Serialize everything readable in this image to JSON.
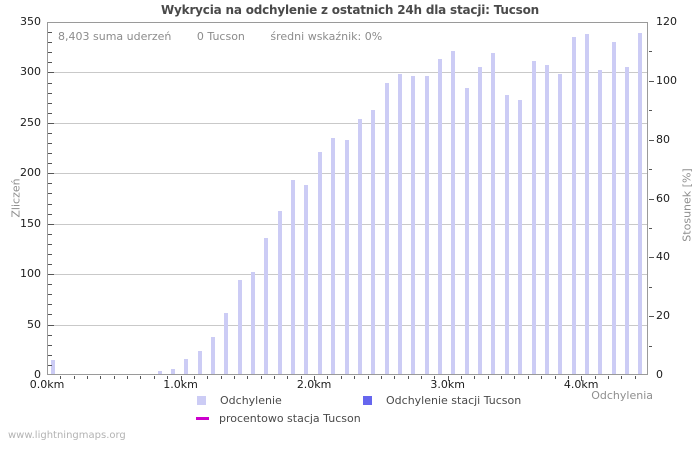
{
  "title": "Wykrycia na odchylenie z ostatnich 24h dla stacji: Tucson",
  "summary": {
    "total_label": "8,403 suma uderzeń",
    "station_label": "0 Tucson",
    "ratio_label": "średni wskaźnik: 0%"
  },
  "footer": "www.lightningmaps.org",
  "colors": {
    "bar": "#ccccf5",
    "station_bar": "#6666ee",
    "percent_line": "#cc00cc",
    "grid": "#c9c9c9",
    "frame": "#9a9a9a",
    "tick": "#555555"
  },
  "legend": {
    "deviation": "Odchylenie",
    "station_deviation": "Odchylenie stacji Tucson",
    "percent_station": "procentowo stacja Tucson"
  },
  "chart_data": {
    "type": "bar",
    "title": "Wykrycia na odchylenie z ostatnich 24h dla stacji: Tucson",
    "xlabel": "Odchylenia",
    "ylabel_left": "Zliczeń",
    "ylabel_right": "Stosunek [%]",
    "x_unit": "km",
    "x_bin_width_km": 0.1,
    "x_range_km": [
      0,
      4.5
    ],
    "ylim_left": [
      0,
      350
    ],
    "ylim_right": [
      0,
      120
    ],
    "x_tick_labels": [
      "0.0km",
      "1.0km",
      "2.0km",
      "3.0km",
      "4.0km"
    ],
    "y_ticks_left": [
      0,
      50,
      100,
      150,
      200,
      250,
      300,
      350
    ],
    "y_ticks_right": [
      0,
      20,
      40,
      60,
      80,
      100,
      120
    ],
    "grid": true,
    "legend_position": "bottom",
    "series": [
      {
        "name": "Odchylenie",
        "x_km": [
          0.0,
          0.1,
          0.2,
          0.3,
          0.4,
          0.5,
          0.6,
          0.7,
          0.8,
          0.9,
          1.0,
          1.1,
          1.2,
          1.3,
          1.4,
          1.5,
          1.6,
          1.7,
          1.8,
          1.9,
          2.0,
          2.1,
          2.2,
          2.3,
          2.4,
          2.5,
          2.6,
          2.7,
          2.8,
          2.9,
          3.0,
          3.1,
          3.2,
          3.3,
          3.4,
          3.5,
          3.6,
          3.7,
          3.8,
          3.9,
          4.0,
          4.1,
          4.2,
          4.3,
          4.4
        ],
        "values": [
          14,
          0,
          0,
          0,
          0,
          0,
          0,
          0,
          3,
          5,
          15,
          23,
          37,
          60,
          93,
          101,
          135,
          162,
          192,
          187,
          220,
          234,
          232,
          253,
          262,
          289,
          297,
          295,
          295,
          312,
          320,
          284,
          304,
          318,
          277,
          272,
          310,
          306,
          297,
          334,
          337,
          301,
          329,
          304,
          338
        ]
      }
    ]
  }
}
